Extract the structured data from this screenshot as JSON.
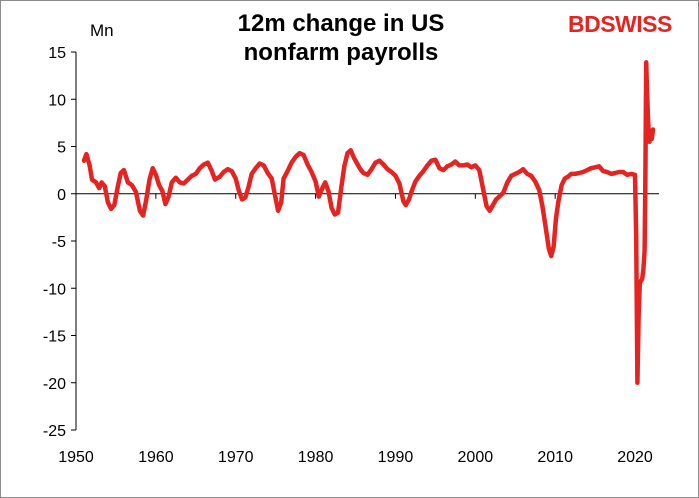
{
  "header": {
    "title_line1": "12m change in US",
    "title_line2": "nonfarm payrolls",
    "unit": "Mn",
    "logo_text": "BDSWISS"
  },
  "colors": {
    "line": "#e52421",
    "axis": "#000000",
    "brand": "#e52421"
  },
  "chart_data": {
    "type": "line",
    "title": "12m change in US nonfarm payrolls",
    "ylabel": "Mn",
    "xlabel": "",
    "xlim": [
      1950,
      2023
    ],
    "ylim": [
      -25,
      15
    ],
    "grid": false,
    "legend": "none",
    "x_ticks": [
      "1950",
      "1960",
      "1970",
      "1980",
      "1990",
      "2000",
      "2010",
      "2020"
    ],
    "y_ticks": [
      "15",
      "10",
      "5",
      "0",
      "-5",
      "-10",
      "-15",
      "-20",
      "-25"
    ],
    "series": [
      {
        "x": [
          1951.0,
          1951.3,
          1951.7,
          1952.0,
          1952.5,
          1952.9,
          1953.2,
          1953.6,
          1954.0,
          1954.4,
          1954.8,
          1955.2,
          1955.6,
          1956.0,
          1956.5,
          1957.0,
          1957.5,
          1958.0,
          1958.4,
          1958.8,
          1959.2,
          1959.6,
          1960.0,
          1960.4,
          1960.8,
          1961.2,
          1961.6,
          1962.0,
          1962.5,
          1963.0,
          1963.5,
          1964.0,
          1964.5,
          1965.0,
          1965.5,
          1966.0,
          1966.5,
          1967.0,
          1967.4,
          1968.0,
          1968.5,
          1969.0,
          1969.5,
          1970.0,
          1970.4,
          1970.8,
          1971.2,
          1971.6,
          1972.0,
          1972.5,
          1973.0,
          1973.5,
          1974.0,
          1974.5,
          1974.9,
          1975.3,
          1975.7,
          1976.0,
          1976.5,
          1977.0,
          1977.5,
          1978.0,
          1978.5,
          1979.0,
          1979.5,
          1980.0,
          1980.4,
          1980.8,
          1981.2,
          1981.6,
          1982.0,
          1982.4,
          1982.8,
          1983.2,
          1983.6,
          1984.0,
          1984.4,
          1984.8,
          1985.2,
          1985.6,
          1986.0,
          1986.5,
          1987.0,
          1987.5,
          1988.0,
          1988.5,
          1989.0,
          1989.5,
          1990.0,
          1990.5,
          1991.0,
          1991.3,
          1991.7,
          1992.0,
          1992.5,
          1993.0,
          1993.5,
          1994.0,
          1994.5,
          1995.0,
          1995.5,
          1996.0,
          1996.5,
          1997.0,
          1997.5,
          1998.0,
          1998.5,
          1999.0,
          1999.5,
          2000.0,
          2000.5,
          2001.0,
          2001.4,
          2001.8,
          2002.2,
          2002.6,
          2003.0,
          2003.5,
          2004.0,
          2004.5,
          2005.0,
          2005.5,
          2006.0,
          2006.5,
          2007.0,
          2007.5,
          2008.0,
          2008.4,
          2008.8,
          2009.2,
          2009.5,
          2009.8,
          2010.1,
          2010.4,
          2010.8,
          2011.2,
          2011.6,
          2012.0,
          2012.5,
          2013.0,
          2013.5,
          2014.0,
          2014.5,
          2015.0,
          2015.5,
          2016.0,
          2016.5,
          2017.0,
          2017.5,
          2018.0,
          2018.5,
          2019.0,
          2019.5,
          2020.0,
          2020.15,
          2020.3,
          2020.45,
          2020.6,
          2020.75,
          2020.9,
          2021.05,
          2021.2,
          2021.3,
          2021.4,
          2021.5,
          2021.65,
          2021.8,
          2021.95,
          2022.1,
          2022.25
        ],
        "y": [
          3.5,
          4.2,
          3.0,
          1.5,
          1.2,
          0.6,
          1.2,
          0.8,
          -0.9,
          -1.6,
          -1.2,
          0.6,
          2.2,
          2.5,
          1.2,
          0.9,
          0.2,
          -1.8,
          -2.3,
          -0.6,
          1.5,
          2.7,
          2.0,
          0.9,
          0.3,
          -1.1,
          -0.3,
          1.2,
          1.7,
          1.2,
          1.1,
          1.5,
          1.9,
          2.1,
          2.7,
          3.1,
          3.3,
          2.4,
          1.5,
          1.8,
          2.3,
          2.6,
          2.4,
          1.6,
          0.3,
          -0.6,
          -0.4,
          0.7,
          2.1,
          2.7,
          3.2,
          3.0,
          2.2,
          1.6,
          -0.1,
          -1.8,
          -0.9,
          1.6,
          2.4,
          3.3,
          3.9,
          4.3,
          4.1,
          3.1,
          2.3,
          1.3,
          -0.3,
          0.5,
          1.2,
          0.3,
          -1.5,
          -2.2,
          -2.0,
          0.5,
          2.9,
          4.3,
          4.6,
          3.8,
          3.2,
          2.6,
          2.2,
          2.0,
          2.6,
          3.3,
          3.5,
          3.1,
          2.6,
          2.3,
          1.9,
          1.1,
          -0.8,
          -1.2,
          -0.6,
          0.2,
          1.3,
          1.9,
          2.4,
          3.0,
          3.5,
          3.6,
          2.7,
          2.5,
          2.9,
          3.1,
          3.4,
          3.0,
          3.0,
          3.1,
          2.8,
          3.0,
          2.5,
          0.4,
          -1.3,
          -1.8,
          -1.2,
          -0.6,
          -0.3,
          0.1,
          1.2,
          1.9,
          2.1,
          2.3,
          2.6,
          2.1,
          1.9,
          1.3,
          0.4,
          -1.3,
          -3.5,
          -5.8,
          -6.6,
          -5.6,
          -2.6,
          -0.8,
          0.9,
          1.6,
          1.8,
          2.1,
          2.1,
          2.2,
          2.3,
          2.5,
          2.7,
          2.8,
          2.9,
          2.4,
          2.3,
          2.1,
          2.2,
          2.3,
          2.3,
          2.0,
          2.1,
          2.0,
          -4.5,
          -20.0,
          -13.0,
          -9.5,
          -9.2,
          -9.0,
          -8.0,
          -6.0,
          2.0,
          13.9,
          11.0,
          7.5,
          5.5,
          6.5,
          5.8,
          6.8
        ]
      }
    ]
  }
}
